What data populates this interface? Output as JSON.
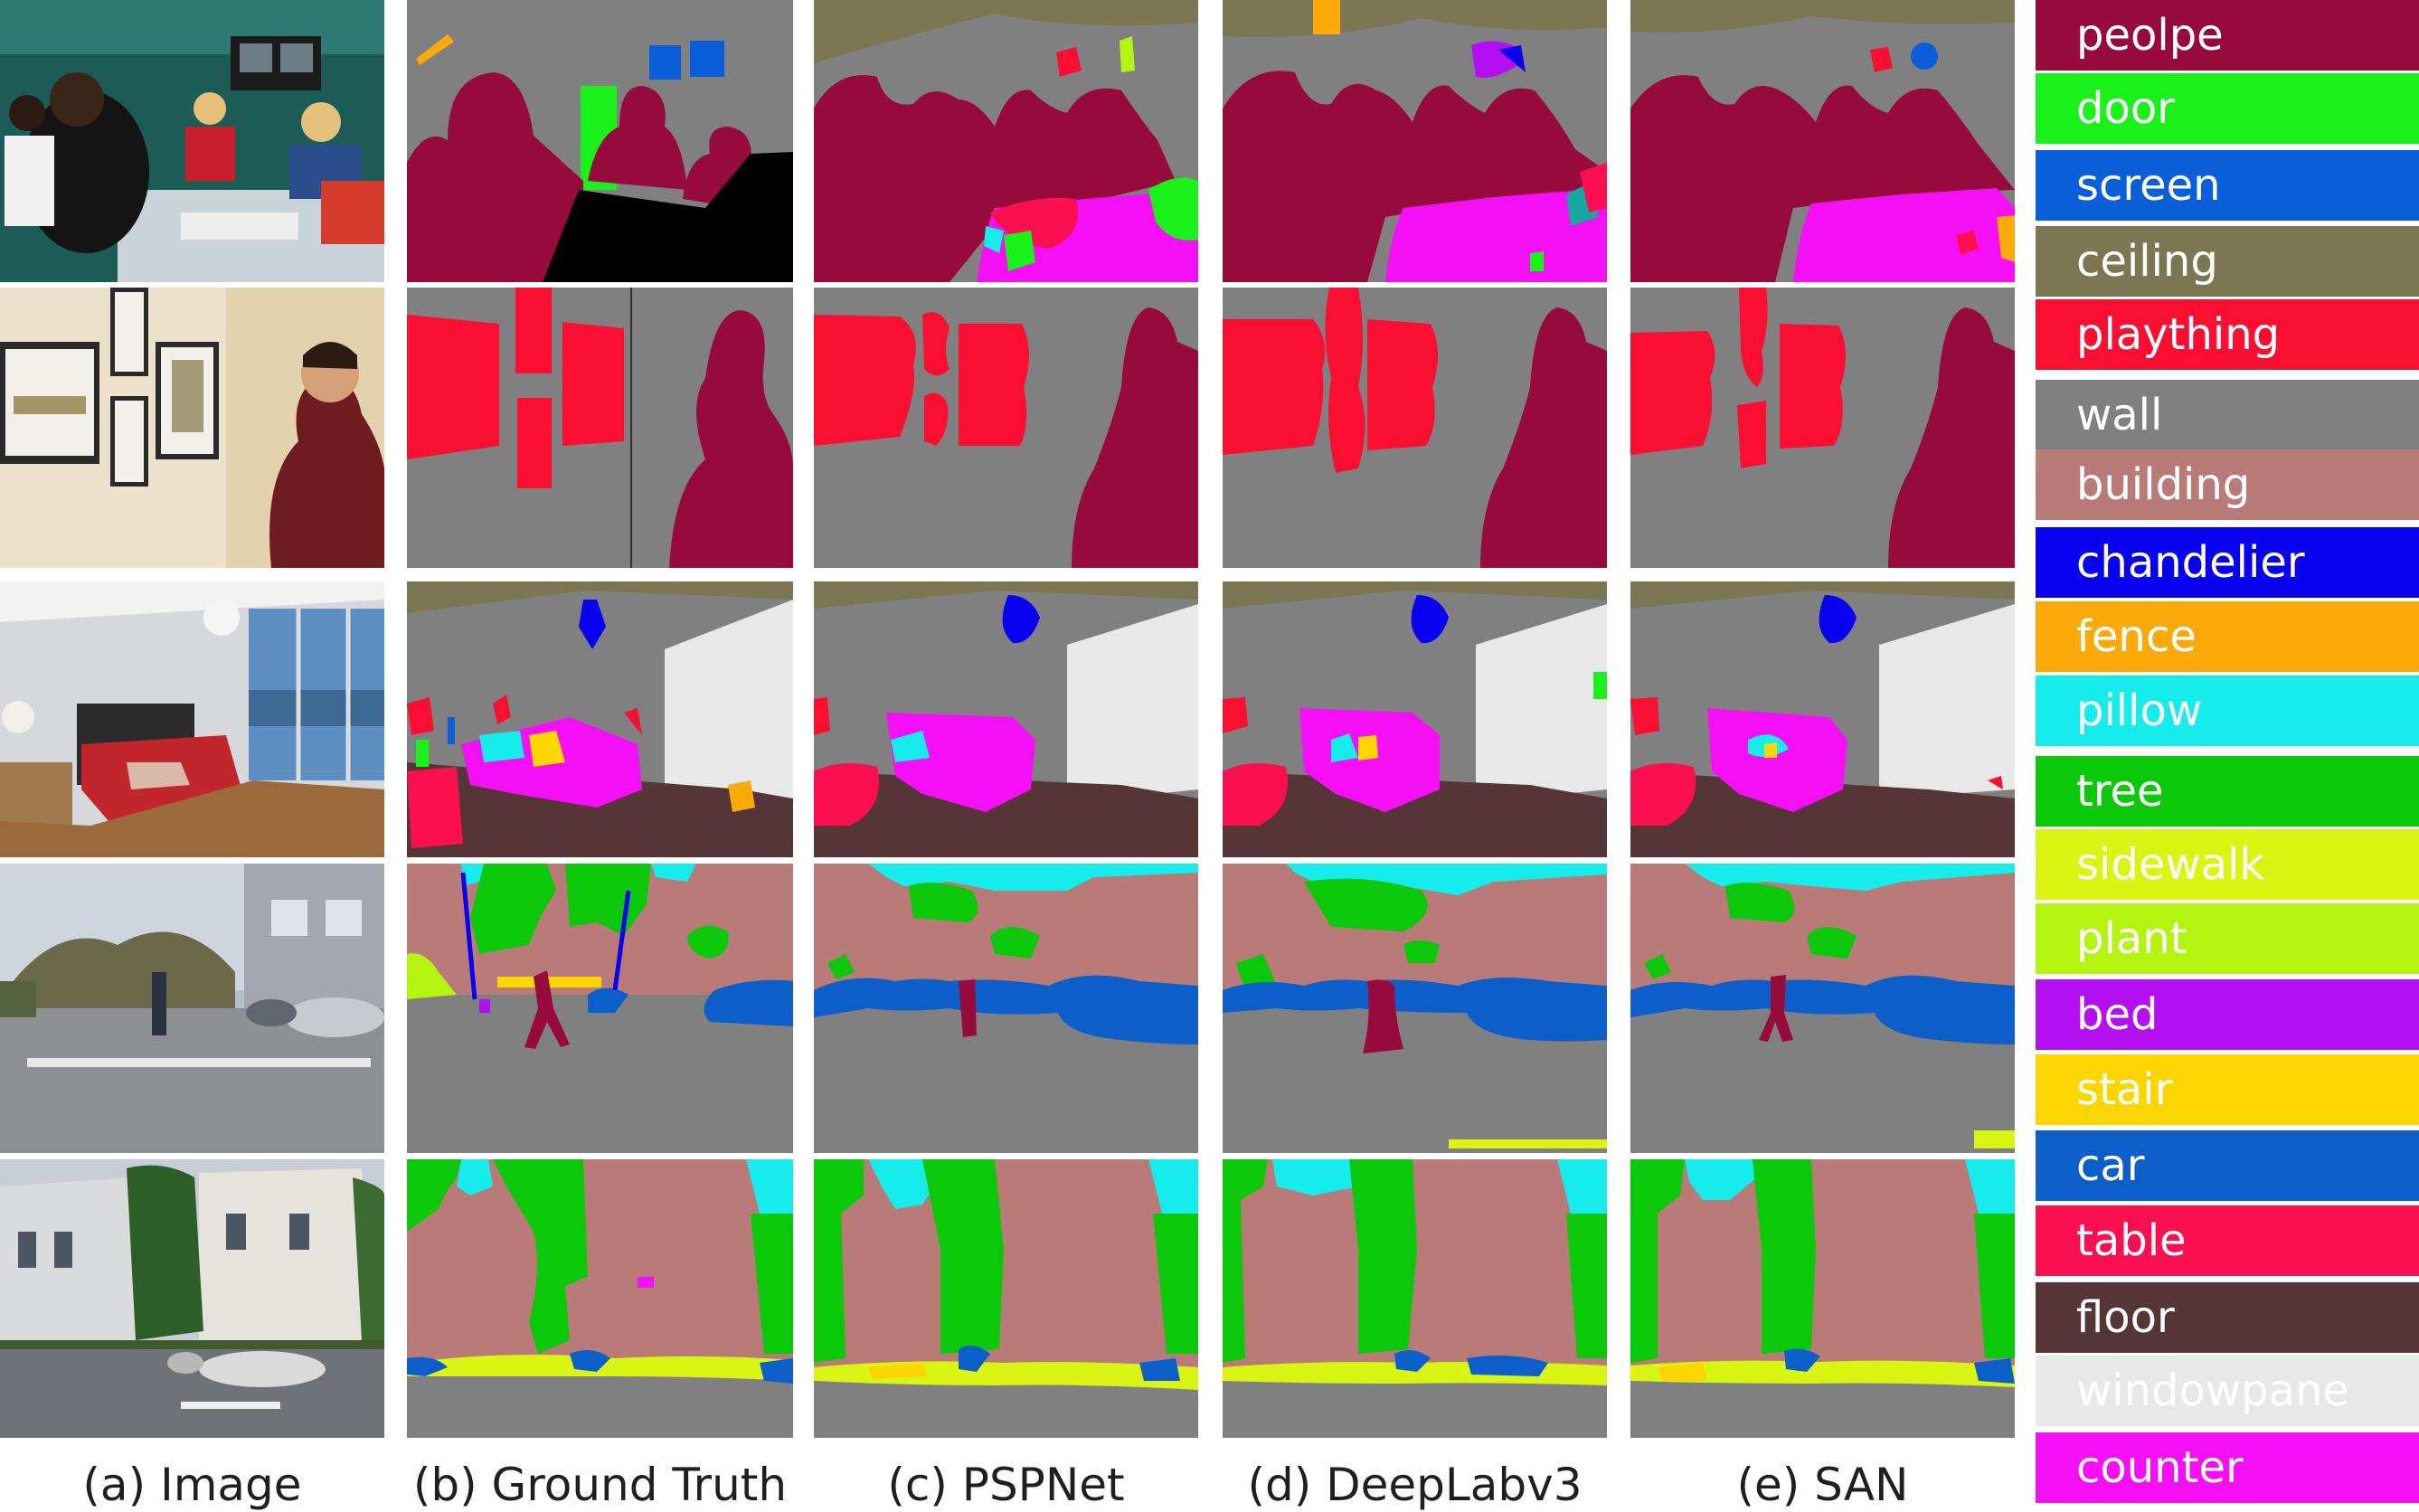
{
  "figure": {
    "columns": [
      {
        "id": "image",
        "caption": "(a) Image"
      },
      {
        "id": "ground_truth",
        "caption": "(b) Ground Truth"
      },
      {
        "id": "pspnet",
        "caption": "(c) PSPNet"
      },
      {
        "id": "deeplabv3",
        "caption": "(d) DeepLabv3"
      },
      {
        "id": "san",
        "caption": "(e) SAN"
      }
    ],
    "legend": [
      {
        "label": "peolpe",
        "color": "#970b3c"
      },
      {
        "label": "door",
        "color": "#1af01a"
      },
      {
        "label": "screen",
        "color": "#0a5ed8"
      },
      {
        "label": "ceiling",
        "color": "#7b7752"
      },
      {
        "label": "plaything",
        "color": "#fa0f33"
      },
      {
        "label": "wall",
        "color": "#808080"
      },
      {
        "label": "building",
        "color": "#b97b77"
      },
      {
        "label": "chandelier",
        "color": "#0a00f0"
      },
      {
        "label": "fence",
        "color": "#fbaa0a"
      },
      {
        "label": "pillow",
        "color": "#16ecec"
      },
      {
        "label": "tree",
        "color": "#0bc80b"
      },
      {
        "label": "sidewalk",
        "color": "#d9f513"
      },
      {
        "label": "plant",
        "color": "#b3f510"
      },
      {
        "label": "bed",
        "color": "#b30ff0"
      },
      {
        "label": "stair",
        "color": "#ffd500"
      },
      {
        "label": "car",
        "color": "#0c5ec8"
      },
      {
        "label": "table",
        "color": "#fa1050"
      },
      {
        "label": "floor",
        "color": "#553535"
      },
      {
        "label": "windowpane",
        "color": "#e8e8e8"
      },
      {
        "label": "counter",
        "color": "#f50ff5"
      }
    ]
  }
}
